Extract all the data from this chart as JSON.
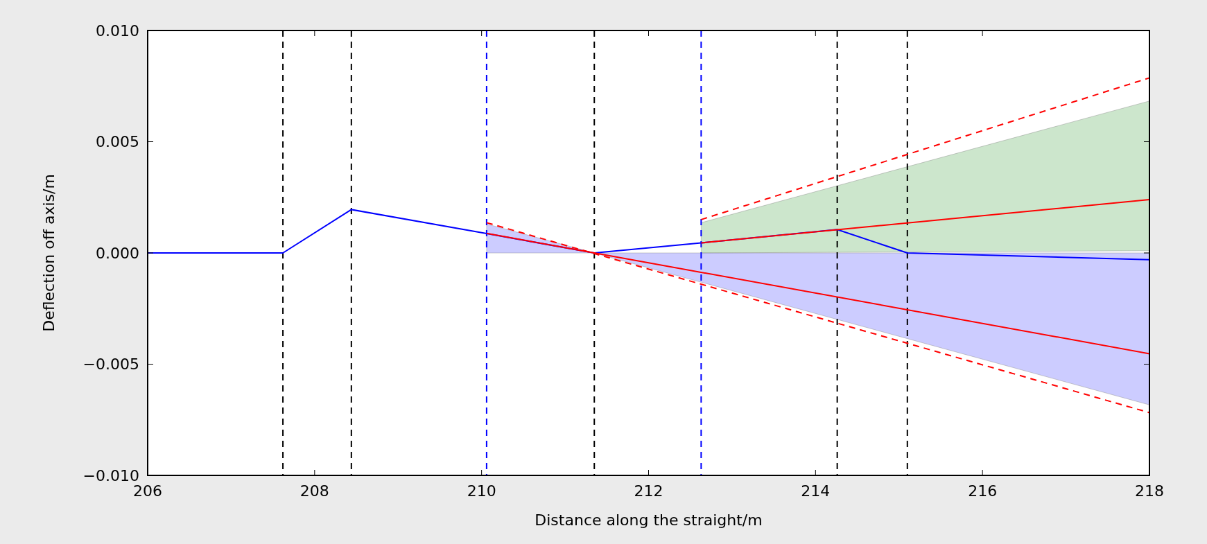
{
  "chart_data": {
    "type": "line",
    "xlabel": "Distance along the straight/m",
    "ylabel": "Deflection off axis/m",
    "xlim": [
      206,
      218
    ],
    "xticks": [
      206,
      208,
      210,
      212,
      214,
      216,
      218
    ],
    "ylim": [
      -0.01,
      0.01
    ],
    "yticks": [
      {
        "value": -0.01,
        "label": "−0.010"
      },
      {
        "value": -0.005,
        "label": "−0.005"
      },
      {
        "value": 0,
        "label": "0.000"
      },
      {
        "value": 0.005,
        "label": "0.005"
      },
      {
        "value": 0.01,
        "label": "0.010"
      }
    ],
    "grid": false,
    "marker": "none",
    "series": [
      {
        "color": "#0000ff",
        "x": [
          206,
          207.62,
          208.44,
          210.06,
          211.35,
          212.63,
          214.26,
          215.1,
          218
        ],
        "values": [
          0,
          0,
          0.00195,
          0.00087,
          0,
          0.00045,
          0.00105,
          0,
          -0.0003
        ]
      },
      {
        "color": "#ff0000",
        "x": [
          212.63,
          218
        ],
        "values": [
          0.00045,
          0.0024
        ],
        "lower": [
          0,
          0.0001
        ],
        "upper": [
          0.00136,
          0.00683
        ]
      },
      {
        "color": "#ff0000",
        "x": [
          210.06,
          211.35,
          218
        ],
        "values": [
          0.00088,
          0,
          -0.00453
        ],
        "lower": [
          0,
          0,
          -0.00683
        ],
        "upper": [
          0.0013,
          0,
          0
        ]
      },
      {
        "color": "#ff0000",
        "line_style": "dashed",
        "x": [
          212.63,
          218
        ],
        "values": [
          0.0015,
          0.00787
        ]
      },
      {
        "color": "#ff0000",
        "line_style": "dashed",
        "x": [
          210.06,
          218
        ],
        "values": [
          0.00136,
          -0.00718
        ]
      }
    ],
    "ref_lines": [
      {
        "axis": "x",
        "value": 207.62,
        "color": "#000000",
        "line_style": "dashed"
      },
      {
        "axis": "x",
        "value": 208.44,
        "color": "#000000",
        "line_style": "dashed"
      },
      {
        "axis": "x",
        "value": 210.06,
        "color": "#0000ff",
        "line_style": "dashed"
      },
      {
        "axis": "x",
        "value": 211.35,
        "color": "#000000",
        "line_style": "dashed"
      },
      {
        "axis": "x",
        "value": 212.63,
        "color": "#0000ff",
        "line_style": "dashed"
      },
      {
        "axis": "x",
        "value": 214.26,
        "color": "#000000",
        "line_style": "dashed"
      },
      {
        "axis": "x",
        "value": 215.1,
        "color": "#000000",
        "line_style": "dashed"
      }
    ]
  }
}
